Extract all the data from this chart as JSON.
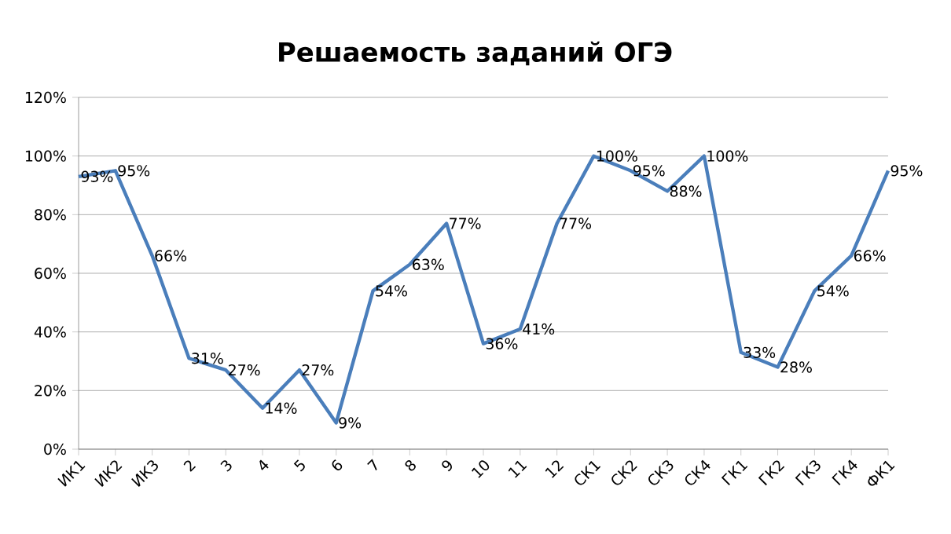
{
  "chart_data": {
    "type": "line",
    "title": "Решаемость заданий ОГЭ",
    "categories": [
      "ИК1",
      "ИК2",
      "ИК3",
      "2",
      "3",
      "4",
      "5",
      "6",
      "7",
      "8",
      "9",
      "10",
      "11",
      "12",
      "СК1",
      "СК2",
      "СК3",
      "СК4",
      "ГК1",
      "ГК2",
      "ГК3",
      "ГК4",
      "ФК1"
    ],
    "series": [
      {
        "color": "#4a7ebb",
        "values": [
          93,
          95,
          66,
          31,
          27,
          14,
          27,
          9,
          54,
          63,
          77,
          36,
          41,
          77,
          100,
          95,
          88,
          100,
          33,
          28,
          54,
          66,
          95
        ],
        "value_labels": [
          "93%",
          "95%",
          "66%",
          "31%",
          "27%",
          "14%",
          "27%",
          "9%",
          "54%",
          "63%",
          "77%",
          "36%",
          "41%",
          "77%",
          "100%",
          "95%",
          "88%",
          "100%",
          "33%",
          "28%",
          "54%",
          "66%",
          "95%"
        ]
      }
    ],
    "ylim": [
      0,
      120
    ],
    "yticks": [
      {
        "value": 0,
        "label": "0%"
      },
      {
        "value": 20,
        "label": "20%"
      },
      {
        "value": 40,
        "label": "40%"
      },
      {
        "value": 60,
        "label": "60%"
      },
      {
        "value": 80,
        "label": "80%"
      },
      {
        "value": 100,
        "label": "100%"
      },
      {
        "value": 120,
        "label": "120%"
      }
    ],
    "grid": "y",
    "marker": "none",
    "line_style": "solid"
  }
}
